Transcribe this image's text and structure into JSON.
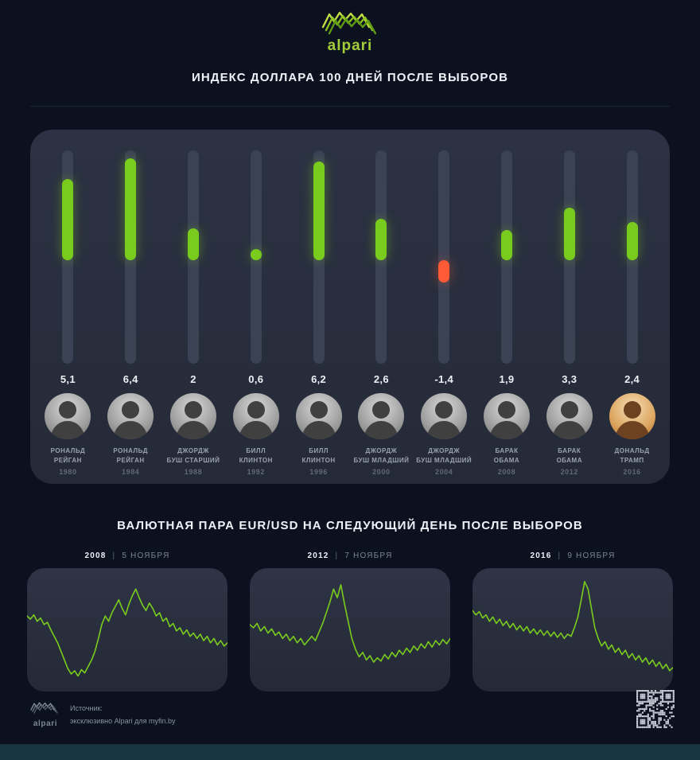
{
  "logo": {
    "text": "alpari",
    "color": "#a3cc3a"
  },
  "main_title": "ИНДЕКС ДОЛЛАРА 100 ДНЕЙ ПОСЛЕ ВЫБОРОВ",
  "labels": {
    "separator": "|"
  },
  "main_chart": {
    "positive_color": "#79cb1e",
    "negative_color": "#ff5a36",
    "track_color": "#3a4254",
    "columns": [
      {
        "value": "5,1",
        "numeric": 5.1,
        "name_lines": [
          "РОНАЛЬД",
          "РЕЙГАН"
        ],
        "year": "1980",
        "portrait": "bw"
      },
      {
        "value": "6,4",
        "numeric": 6.4,
        "name_lines": [
          "РОНАЛЬД",
          "РЕЙГАН"
        ],
        "year": "1984",
        "portrait": "bw"
      },
      {
        "value": "2",
        "numeric": 2.0,
        "name_lines": [
          "ДЖОРДЖ",
          "БУШ СТАРШИЙ"
        ],
        "year": "1988",
        "portrait": "bw"
      },
      {
        "value": "0,6",
        "numeric": 0.6,
        "name_lines": [
          "БИЛЛ",
          "КЛИНТОН"
        ],
        "year": "1992",
        "portrait": "bw"
      },
      {
        "value": "6,2",
        "numeric": 6.2,
        "name_lines": [
          "БИЛЛ",
          "КЛИНТОН"
        ],
        "year": "1996",
        "portrait": "bw"
      },
      {
        "value": "2,6",
        "numeric": 2.6,
        "name_lines": [
          "ДЖОРДЖ",
          "БУШ МЛАДШИЙ"
        ],
        "year": "2000",
        "portrait": "bw"
      },
      {
        "value": "-1,4",
        "numeric": -1.4,
        "name_lines": [
          "ДЖОРДЖ",
          "БУШ МЛАДШИЙ"
        ],
        "year": "2004",
        "portrait": "bw"
      },
      {
        "value": "1,9",
        "numeric": 1.9,
        "name_lines": [
          "БАРАК",
          "ОБАМА"
        ],
        "year": "2008",
        "portrait": "bw"
      },
      {
        "value": "3,3",
        "numeric": 3.3,
        "name_lines": [
          "БАРАК",
          "ОБАМА"
        ],
        "year": "2012",
        "portrait": "bw"
      },
      {
        "value": "2,4",
        "numeric": 2.4,
        "name_lines": [
          "ДОНАЛЬД",
          "ТРАМП"
        ],
        "year": "2016",
        "portrait": "color"
      }
    ]
  },
  "section2_title": "ВАЛЮТНАЯ ПАРА EUR/USD НА СЛЕДУЮЩИЙ ДЕНЬ ПОСЛЕ ВЫБОРОВ",
  "chart_data": [
    {
      "type": "line",
      "title": "2008 | 5 НОЯБРЯ",
      "year": "2008",
      "date": "5 НОЯБРЯ",
      "line_color": "#79cb1e",
      "xlabel": "",
      "ylabel": "",
      "axes_shown": false,
      "series": [
        {
          "name": "EUR/USD (relative level)",
          "values": [
            63,
            60,
            64,
            58,
            61,
            55,
            57,
            50,
            44,
            38,
            30,
            22,
            14,
            9,
            12,
            7,
            13,
            10,
            16,
            22,
            30,
            42,
            55,
            63,
            58,
            66,
            72,
            78,
            70,
            64,
            74,
            82,
            88,
            80,
            73,
            68,
            75,
            70,
            63,
            66,
            58,
            61,
            53,
            56,
            49,
            52,
            46,
            50,
            44,
            47,
            42,
            46,
            40,
            44,
            38,
            42,
            36,
            40,
            35,
            38
          ]
        }
      ]
    },
    {
      "type": "line",
      "title": "2012 | 7 НОЯБРЯ",
      "year": "2012",
      "date": "7 НОЯБРЯ",
      "line_color": "#79cb1e",
      "xlabel": "",
      "ylabel": "",
      "axes_shown": false,
      "series": [
        {
          "name": "EUR/USD (relative level)",
          "values": [
            55,
            52,
            56,
            49,
            53,
            47,
            51,
            45,
            48,
            42,
            46,
            40,
            44,
            38,
            42,
            36,
            40,
            44,
            40,
            48,
            56,
            66,
            76,
            88,
            80,
            92,
            74,
            58,
            42,
            32,
            25,
            29,
            22,
            26,
            20,
            24,
            21,
            27,
            23,
            29,
            25,
            31,
            27,
            33,
            29,
            35,
            31,
            37,
            33,
            39,
            34,
            40,
            36,
            41,
            37,
            42
          ]
        }
      ]
    },
    {
      "type": "line",
      "title": "2016 | 9 НОЯБРЯ",
      "year": "2016",
      "date": "9 НОЯБРЯ",
      "line_color": "#79cb1e",
      "xlabel": "",
      "ylabel": "",
      "axes_shown": false,
      "series": [
        {
          "name": "EUR/USD (relative level)",
          "values": [
            68,
            64,
            67,
            61,
            64,
            58,
            62,
            56,
            60,
            54,
            58,
            52,
            56,
            50,
            54,
            49,
            53,
            47,
            51,
            46,
            50,
            45,
            49,
            44,
            48,
            43,
            47,
            42,
            46,
            44,
            52,
            62,
            78,
            95,
            88,
            70,
            52,
            42,
            35,
            39,
            32,
            36,
            29,
            33,
            27,
            31,
            24,
            28,
            22,
            26,
            20,
            24,
            18,
            22,
            16,
            20,
            14,
            18,
            12,
            15
          ]
        }
      ]
    }
  ],
  "footer": {
    "logo_text": "alpari",
    "source_label": "Источник:",
    "source_text": "эксклюзивно Alpari для myfin.by"
  }
}
